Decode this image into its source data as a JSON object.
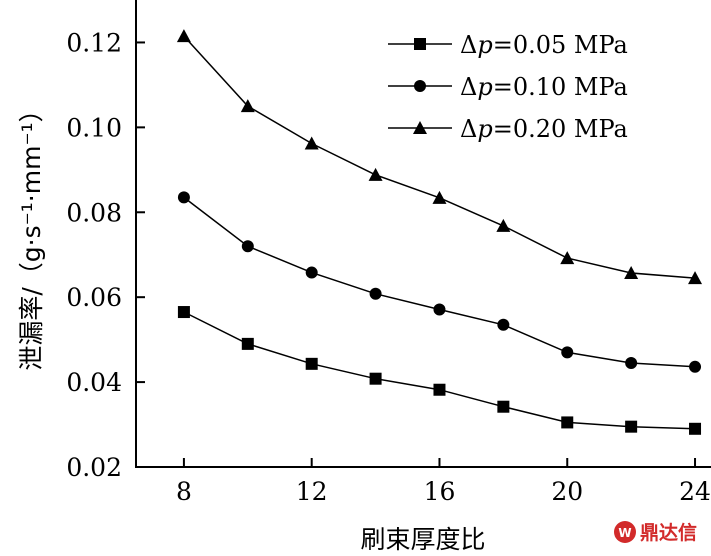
{
  "chart_data": {
    "type": "line",
    "title": "",
    "xlabel": "刷束厚度比",
    "ylabel": "泄漏率/（g·s⁻¹·mm⁻¹）",
    "x": [
      8,
      10,
      12,
      14,
      16,
      18,
      20,
      22,
      24
    ],
    "xlim": [
      6.5,
      24.5
    ],
    "ylim": [
      0.02,
      0.13
    ],
    "xticks": [
      "8",
      "12",
      "16",
      "20",
      "24"
    ],
    "yticks": [
      "0.02",
      "0.04",
      "0.06",
      "0.08",
      "0.10",
      "0.12"
    ],
    "grid": false,
    "legend_position": "top-right",
    "series": [
      {
        "name": "Δp=0.05 MPa",
        "marker": "square",
        "values": [
          0.0565,
          0.049,
          0.0443,
          0.0408,
          0.0382,
          0.0342,
          0.0305,
          0.0295,
          0.029
        ]
      },
      {
        "name": "Δp=0.10 MPa",
        "marker": "circle",
        "values": [
          0.0835,
          0.072,
          0.0658,
          0.0608,
          0.0571,
          0.0535,
          0.047,
          0.0445,
          0.0436
        ]
      },
      {
        "name": "Δp=0.20 MPa",
        "marker": "triangle",
        "values": [
          0.1215,
          0.105,
          0.0962,
          0.0888,
          0.0834,
          0.0768,
          0.0692,
          0.0657,
          0.0645
        ]
      }
    ],
    "legend_labels": {
      "s1_prefix": "Δ",
      "s1_var": "p",
      "s1_rest": "=0.05 MPa",
      "s2_prefix": "Δ",
      "s2_var": "p",
      "s2_rest": "=0.10 MPa",
      "s3_prefix": "Δ",
      "s3_var": "p",
      "s3_rest": "=0.20 MPa"
    }
  },
  "watermark": {
    "text": "鼎达信",
    "color": "#d22a2a"
  }
}
